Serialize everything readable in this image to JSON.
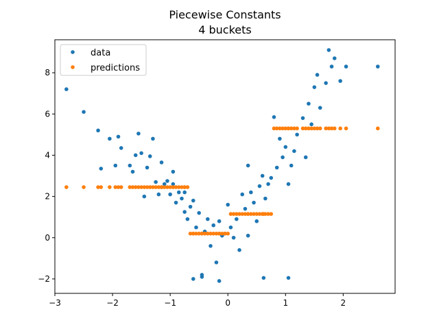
{
  "chart_data": {
    "type": "scatter",
    "title": "Piecewise Constants",
    "subtitle": "4 buckets",
    "xlabel": "",
    "ylabel": "",
    "xlim": [
      -3.0,
      2.9
    ],
    "ylim": [
      -2.7,
      9.6
    ],
    "xticks": [
      -3,
      -2,
      -1,
      0,
      1,
      2
    ],
    "xtick_labels": [
      "−3",
      "−2",
      "−1",
      "0",
      "1",
      "2"
    ],
    "yticks": [
      -2,
      0,
      2,
      4,
      6,
      8
    ],
    "ytick_labels": [
      "−2",
      "0",
      "2",
      "4",
      "6",
      "8"
    ],
    "grid": false,
    "legend_position": "top-left",
    "colors": {
      "data": "#1f77b4",
      "predictions": "#ff7f0e"
    },
    "buckets": [
      {
        "x_range": [
          -2.8,
          -0.7
        ],
        "value": 2.45
      },
      {
        "x_range": [
          -0.7,
          0.0
        ],
        "value": 0.2
      },
      {
        "x_range": [
          0.0,
          0.75
        ],
        "value": 1.15
      },
      {
        "x_range": [
          0.75,
          2.6
        ],
        "value": 5.3
      }
    ],
    "series": [
      {
        "name": "data",
        "points": [
          [
            -2.8,
            7.2
          ],
          [
            -2.5,
            6.1
          ],
          [
            -2.25,
            5.2
          ],
          [
            -2.2,
            3.35
          ],
          [
            -2.05,
            4.8
          ],
          [
            -1.9,
            4.9
          ],
          [
            -1.85,
            4.35
          ],
          [
            -1.65,
            3.2
          ],
          [
            -1.6,
            4.0
          ],
          [
            -1.55,
            5.05
          ],
          [
            -1.5,
            4.1
          ],
          [
            -1.45,
            2.0
          ],
          [
            -1.4,
            3.4
          ],
          [
            -1.35,
            3.95
          ],
          [
            -1.3,
            4.8
          ],
          [
            -1.25,
            2.7
          ],
          [
            -1.2,
            2.1
          ],
          [
            -1.15,
            2.45
          ],
          [
            -1.1,
            2.6
          ],
          [
            -1.05,
            2.75
          ],
          [
            -1.0,
            2.1
          ],
          [
            -0.95,
            2.6
          ],
          [
            -0.9,
            1.7
          ],
          [
            -0.85,
            2.2
          ],
          [
            -0.8,
            1.9
          ],
          [
            -0.75,
            1.25
          ],
          [
            -0.7,
            0.9
          ],
          [
            -0.65,
            1.5
          ],
          [
            -0.6,
            -2.0
          ],
          [
            -0.55,
            0.5
          ],
          [
            -0.5,
            1.2
          ],
          [
            -0.45,
            -1.8
          ],
          [
            -0.4,
            0.3
          ],
          [
            -0.35,
            0.9
          ],
          [
            -0.3,
            -0.4
          ],
          [
            -0.25,
            0.6
          ],
          [
            -0.2,
            -1.2
          ],
          [
            -0.15,
            0.8
          ],
          [
            -0.1,
            0.1
          ],
          [
            -0.05,
            0.2
          ],
          [
            0.0,
            1.6
          ],
          [
            0.05,
            0.5
          ],
          [
            0.1,
            0.0
          ],
          [
            0.15,
            0.9
          ],
          [
            0.2,
            -0.6
          ],
          [
            0.25,
            2.1
          ],
          [
            0.3,
            1.4
          ],
          [
            0.35,
            3.5
          ],
          [
            0.4,
            2.2
          ],
          [
            0.45,
            1.7
          ],
          [
            0.5,
            0.8
          ],
          [
            0.55,
            2.5
          ],
          [
            0.6,
            3.0
          ],
          [
            0.65,
            1.9
          ],
          [
            0.7,
            2.6
          ],
          [
            0.75,
            2.9
          ],
          [
            0.8,
            5.85
          ],
          [
            0.85,
            3.4
          ],
          [
            0.9,
            4.8
          ],
          [
            0.95,
            3.9
          ],
          [
            1.0,
            4.4
          ],
          [
            1.05,
            2.6
          ],
          [
            1.1,
            3.5
          ],
          [
            1.15,
            4.2
          ],
          [
            1.2,
            5.0
          ],
          [
            1.3,
            5.8
          ],
          [
            1.35,
            3.9
          ],
          [
            1.4,
            6.5
          ],
          [
            1.45,
            5.5
          ],
          [
            1.5,
            7.3
          ],
          [
            1.55,
            7.9
          ],
          [
            1.6,
            6.3
          ],
          [
            1.7,
            7.5
          ],
          [
            1.75,
            9.1
          ],
          [
            1.8,
            8.3
          ],
          [
            1.85,
            8.7
          ],
          [
            1.95,
            7.6
          ],
          [
            2.05,
            8.3
          ],
          [
            2.6,
            8.3
          ],
          [
            1.05,
            -1.95
          ],
          [
            0.62,
            -1.95
          ],
          [
            -0.15,
            -2.1
          ],
          [
            -0.45,
            -1.9
          ],
          [
            0.35,
            0.1
          ],
          [
            -1.95,
            3.5
          ],
          [
            -1.7,
            3.5
          ],
          [
            -1.15,
            3.65
          ],
          [
            -0.95,
            3.2
          ],
          [
            -0.75,
            2.2
          ],
          [
            -0.6,
            1.8
          ]
        ]
      },
      {
        "name": "predictions"
      }
    ]
  }
}
